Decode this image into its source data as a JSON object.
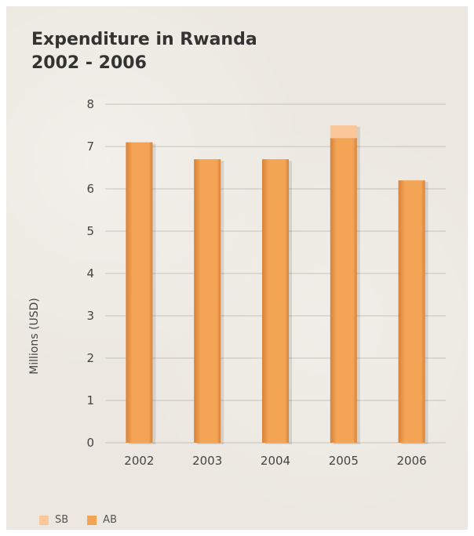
{
  "title_line1": "Expenditure in Rwanda",
  "title_line2": "2002 - 2006",
  "colors": {
    "sb": "#f9c79a",
    "ab": "#f3a555",
    "ab_dark": "#d8823a",
    "grid": "#c8c3ba",
    "text": "#444444"
  },
  "legend": [
    {
      "label": "SB",
      "color": "#f9c79a"
    },
    {
      "label": "AB",
      "color": "#f3a555"
    }
  ],
  "chart_data": {
    "type": "bar",
    "stacked": true,
    "categories": [
      "2002",
      "2003",
      "2004",
      "2005",
      "2006"
    ],
    "series": [
      {
        "name": "AB",
        "values": [
          7.1,
          6.7,
          6.7,
          7.2,
          6.2
        ]
      },
      {
        "name": "SB",
        "values": [
          0,
          0,
          0,
          0.3,
          0
        ]
      }
    ],
    "ylabel": "Millions (USD)",
    "ylim": [
      0,
      8
    ],
    "yticks": [
      0,
      1,
      2,
      3,
      4,
      5,
      6,
      7,
      8
    ],
    "grid": true,
    "legend_position": "bottom-left"
  }
}
